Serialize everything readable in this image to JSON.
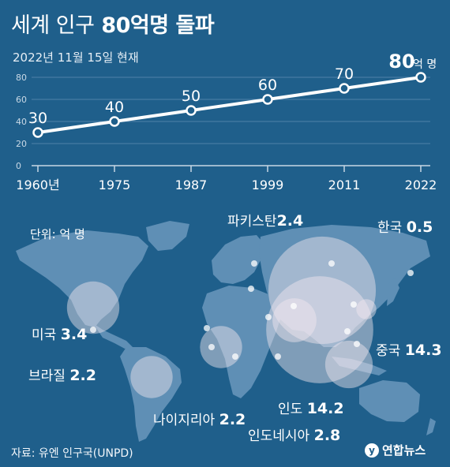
{
  "header": {
    "title_light": "세계 인구",
    "title_bold": "80억명 돌파",
    "subtitle": "2022년 11월 15일 현재"
  },
  "chart_data": [
    {
      "type": "line",
      "x": [
        "1960년",
        "1975",
        "1987",
        "1999",
        "2011",
        "2022"
      ],
      "values": [
        30,
        40,
        50,
        60,
        70,
        80
      ],
      "data_labels": [
        "30",
        "40",
        "50",
        "60",
        "70",
        "80"
      ],
      "last_label_unit": "억 명",
      "ylim": [
        0,
        80
      ],
      "yticks": [
        0,
        20,
        40,
        60,
        80
      ],
      "grid": true
    },
    {
      "type": "bubble-map",
      "unit_label": "단위: 억 명",
      "countries": [
        {
          "name": "미국",
          "value": 3.4
        },
        {
          "name": "브라질",
          "value": 2.2
        },
        {
          "name": "나이지리아",
          "value": 2.2
        },
        {
          "name": "파키스탄",
          "value": 2.4
        },
        {
          "name": "한국",
          "value": 0.5
        },
        {
          "name": "중국",
          "value": 14.3
        },
        {
          "name": "인도",
          "value": 14.2
        },
        {
          "name": "인도네시아",
          "value": 2.8
        }
      ]
    }
  ],
  "footer": {
    "source": "자료: 유엔 인구국(UNPD)",
    "logo_text": "연합뉴스"
  },
  "colors": {
    "background": "#1f5f8b",
    "land": "#5f8fb5",
    "bubble": "#f4e9ef"
  }
}
